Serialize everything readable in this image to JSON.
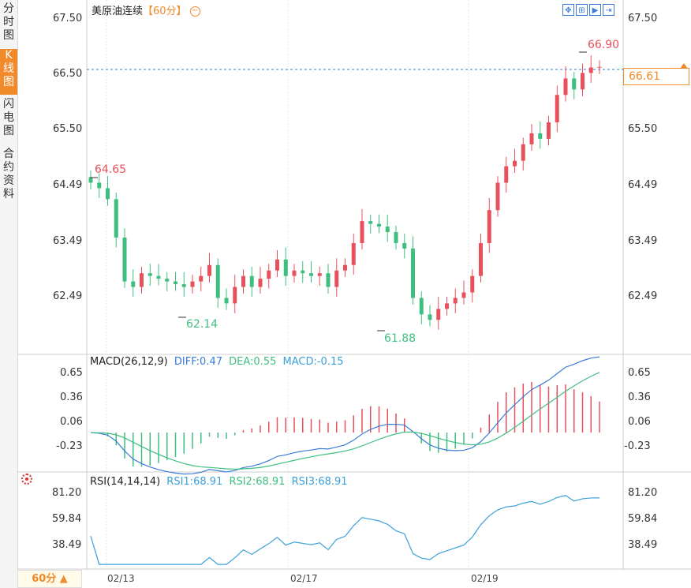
{
  "sidebar": {
    "tabs": [
      {
        "label": "分时图",
        "active": false
      },
      {
        "label": "K线图",
        "active": true
      },
      {
        "label": "闪电图",
        "active": false
      },
      {
        "label": "合约资料",
        "active": false
      }
    ]
  },
  "header": {
    "instrument": "美原油连续",
    "period_bracket": "【60分】",
    "period_icon": "circle-minus-icon",
    "toolbar_icons": [
      "fullscreen-icon",
      "zoom-chart-icon",
      "play-icon",
      "step-forward-icon"
    ]
  },
  "price_axis": {
    "left_ticks": [
      "67.50",
      "66.50",
      "65.50",
      "64.49",
      "63.49",
      "62.49"
    ],
    "right_ticks": [
      "67.50",
      "66.50",
      "65.50",
      "64.49",
      "63.49",
      "62.49"
    ],
    "current_price": "66.61"
  },
  "annotations": {
    "high_right": "66.90",
    "high_left": "64.65",
    "low_left": "62.14",
    "low_right": "61.88"
  },
  "macd": {
    "name": "MACD(26,12,9)",
    "diff_label": "DIFF:0.47",
    "dea_label": "DEA:0.55",
    "macd_label": "MACD:-0.15",
    "left_ticks": [
      "0.65",
      "0.36",
      "0.06",
      "-0.23"
    ],
    "right_ticks": [
      "0.65",
      "0.36",
      "0.06",
      "-0.23"
    ]
  },
  "rsi": {
    "name": "RSI(14,14,14)",
    "rsi1_label": "RSI1:68.91",
    "rsi2_label": "RSI2:68.91",
    "rsi3_label": "RSI3:68.91",
    "left_ticks": [
      "81.20",
      "59.84",
      "38.49"
    ],
    "right_ticks": [
      "81.20",
      "59.84",
      "38.49"
    ]
  },
  "x_axis": {
    "period_button": "60分 ▲",
    "dates": [
      "02/13",
      "02/17",
      "02/19"
    ]
  },
  "colors": {
    "up": "#e8505b",
    "down": "#3fbf7f",
    "diff": "#3a7bd5",
    "dea": "#3fbf7f",
    "rsi": "#3aa0d8",
    "accent": "#f08a2a"
  },
  "chart_data": {
    "type": "candlestick",
    "price_range": [
      61.5,
      67.6
    ],
    "last_price": 66.61,
    "high": 66.9,
    "low": 61.88,
    "series_close": [
      64.5,
      64.4,
      64.2,
      63.5,
      62.7,
      62.6,
      62.85,
      62.8,
      62.75,
      62.7,
      62.65,
      62.6,
      62.7,
      62.8,
      63.0,
      62.4,
      62.3,
      62.6,
      62.8,
      62.6,
      62.75,
      62.9,
      63.1,
      62.8,
      62.9,
      62.85,
      62.8,
      62.85,
      62.6,
      62.9,
      63.0,
      63.4,
      63.8,
      63.75,
      63.7,
      63.6,
      63.4,
      63.3,
      62.4,
      62.1,
      62.0,
      62.2,
      62.3,
      62.4,
      62.5,
      62.8,
      63.4,
      64.0,
      64.5,
      64.8,
      64.9,
      65.2,
      65.4,
      65.3,
      65.6,
      66.1,
      66.4,
      66.2,
      66.5,
      66.6,
      66.61
    ]
  }
}
